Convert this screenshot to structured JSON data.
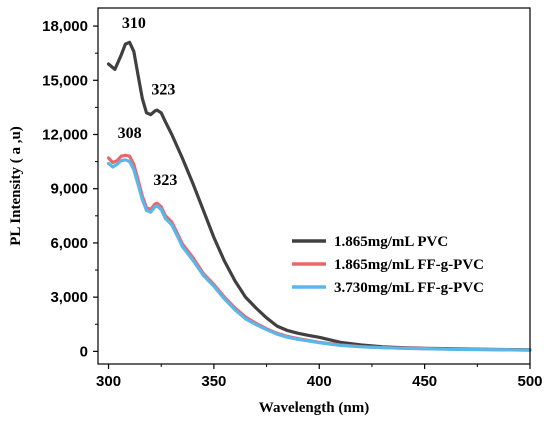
{
  "chart_data": {
    "type": "line",
    "xlabel": "Wavelength (nm)",
    "ylabel": "PL Intensity ( a ,u)",
    "xlim": [
      295,
      500
    ],
    "ylim": [
      -700,
      19000
    ],
    "xticks": [
      300,
      350,
      400,
      450,
      500
    ],
    "xtick_labels": [
      "300",
      "350",
      "400",
      "450",
      "500"
    ],
    "yticks": [
      0,
      3000,
      6000,
      9000,
      12000,
      15000,
      18000
    ],
    "ytick_labels": [
      "0",
      "3,000",
      "6,000",
      "9,000",
      "12,000",
      "15,000",
      "18,000"
    ],
    "grid": false,
    "legend_position": "right",
    "series": [
      {
        "name": "1.865mg/mL PVC",
        "color": "#404040",
        "x": [
          300,
          303,
          306,
          308,
          310,
          312,
          314,
          316,
          318,
          320,
          322,
          323,
          325,
          327,
          330,
          335,
          340,
          345,
          350,
          355,
          360,
          365,
          370,
          375,
          380,
          385,
          390,
          395,
          400,
          410,
          420,
          430,
          440,
          450,
          460,
          470,
          480,
          490,
          500
        ],
        "y": [
          15900,
          15600,
          16400,
          17000,
          17100,
          16600,
          15300,
          14000,
          13200,
          13100,
          13300,
          13350,
          13200,
          12700,
          12000,
          10700,
          9300,
          7800,
          6300,
          5000,
          3900,
          3000,
          2400,
          1850,
          1400,
          1150,
          1000,
          880,
          780,
          500,
          350,
          250,
          200,
          170,
          150,
          130,
          110,
          95,
          80
        ]
      },
      {
        "name": "1.865mg/mL FF-g-PVC",
        "color": "#e8676b",
        "x": [
          300,
          302,
          304,
          306,
          308,
          310,
          312,
          314,
          316,
          318,
          320,
          322,
          323,
          325,
          327,
          330,
          333,
          335,
          340,
          345,
          350,
          355,
          360,
          365,
          370,
          375,
          380,
          385,
          390,
          395,
          400,
          410,
          420,
          430,
          440,
          450,
          460,
          470,
          480,
          490,
          500
        ],
        "y": [
          10700,
          10450,
          10550,
          10800,
          10850,
          10800,
          10350,
          9500,
          8600,
          7950,
          7850,
          8150,
          8200,
          8000,
          7500,
          7150,
          6450,
          5950,
          5200,
          4300,
          3700,
          3000,
          2400,
          1900,
          1550,
          1250,
          1000,
          820,
          700,
          600,
          500,
          350,
          260,
          210,
          180,
          150,
          130,
          110,
          100,
          85,
          70
        ]
      },
      {
        "name": "3.730mg/mL FF-g-PVC",
        "color": "#5bb7e8",
        "x": [
          300,
          302,
          304,
          306,
          308,
          310,
          312,
          314,
          316,
          318,
          320,
          322,
          323,
          325,
          327,
          330,
          333,
          335,
          340,
          345,
          350,
          355,
          360,
          365,
          370,
          375,
          380,
          385,
          390,
          395,
          400,
          410,
          420,
          430,
          440,
          450,
          460,
          470,
          480,
          490,
          500
        ],
        "y": [
          10400,
          10200,
          10350,
          10550,
          10600,
          10500,
          10050,
          9250,
          8400,
          7800,
          7700,
          8000,
          8050,
          7850,
          7350,
          7000,
          6300,
          5800,
          5050,
          4200,
          3600,
          2900,
          2300,
          1800,
          1480,
          1200,
          950,
          780,
          660,
          570,
          480,
          330,
          250,
          200,
          170,
          140,
          120,
          100,
          90,
          80,
          65
        ]
      }
    ],
    "annotations": [
      {
        "text": "310",
        "x": 312,
        "y": 17900
      },
      {
        "text": "323",
        "x": 326,
        "y": 14200
      },
      {
        "text": "308",
        "x": 310,
        "y": 11800
      },
      {
        "text": "323",
        "x": 327,
        "y": 9200
      }
    ]
  }
}
